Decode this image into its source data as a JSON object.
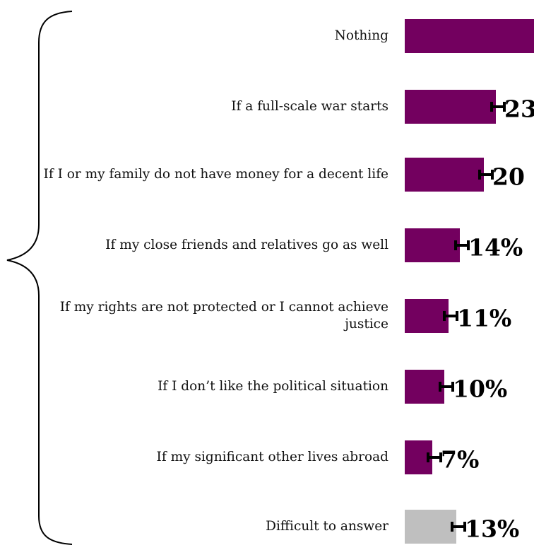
{
  "chart_data": {
    "type": "bar",
    "orientation": "horizontal",
    "title": "",
    "xlabel": "",
    "ylabel": "",
    "xlim": [
      0,
      100
    ],
    "categories": [
      "Nothing",
      "If a full-scale war starts",
      "If I or my family do not have money for a decent life",
      "If my close friends and relatives go as well",
      "If my rights are not protected or I cannot achieve justice",
      "If I don’t like the political situation",
      "If my significant other lives abroad",
      "Difficult to answer"
    ],
    "values": [
      null,
      23,
      20,
      14,
      11,
      10,
      7,
      13
    ],
    "value_labels": [
      "",
      "23",
      "20",
      "14%",
      "11%",
      "10%",
      "7%",
      "13%"
    ],
    "bar_colors": [
      "#73005f",
      "#73005f",
      "#73005f",
      "#73005f",
      "#73005f",
      "#73005f",
      "#73005f",
      "#bfbfbf"
    ],
    "error_bars": true,
    "grid": false,
    "legend": "none"
  },
  "colors": {
    "primary": "#73005f",
    "neutral": "#bfbfbf",
    "brace": "#000000"
  }
}
